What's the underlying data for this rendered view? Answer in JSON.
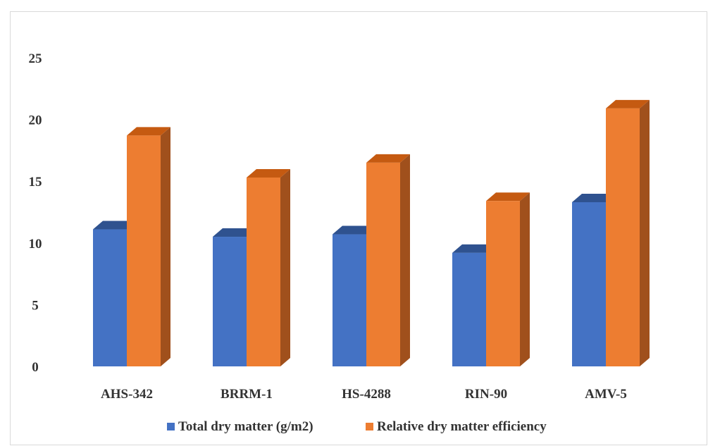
{
  "chart_data": {
    "type": "bar",
    "variant": "3d-clustered-column",
    "categories": [
      "AHS-342",
      "BRRM-1",
      "HS-4288",
      "RIN-90",
      "AMV-5"
    ],
    "series": [
      {
        "name": "Total dry matter (g/m2)",
        "values": [
          11.1,
          10.5,
          10.7,
          9.2,
          13.3
        ],
        "color": "#4472c4",
        "side_color": "#2f528f",
        "top_color": "#2f528f"
      },
      {
        "name": "Relative dry matter efficiency",
        "values": [
          18.7,
          15.3,
          16.5,
          13.4,
          20.9
        ],
        "color": "#ed7d31",
        "side_color": "#a0501c",
        "top_color": "#c55a11"
      }
    ],
    "y_ticks": [
      "0",
      "5",
      "10",
      "15",
      "20",
      "25"
    ],
    "ylim": [
      0,
      25
    ],
    "grid": false,
    "legend_position": "bottom",
    "title": "",
    "xlabel": "",
    "ylabel": ""
  }
}
